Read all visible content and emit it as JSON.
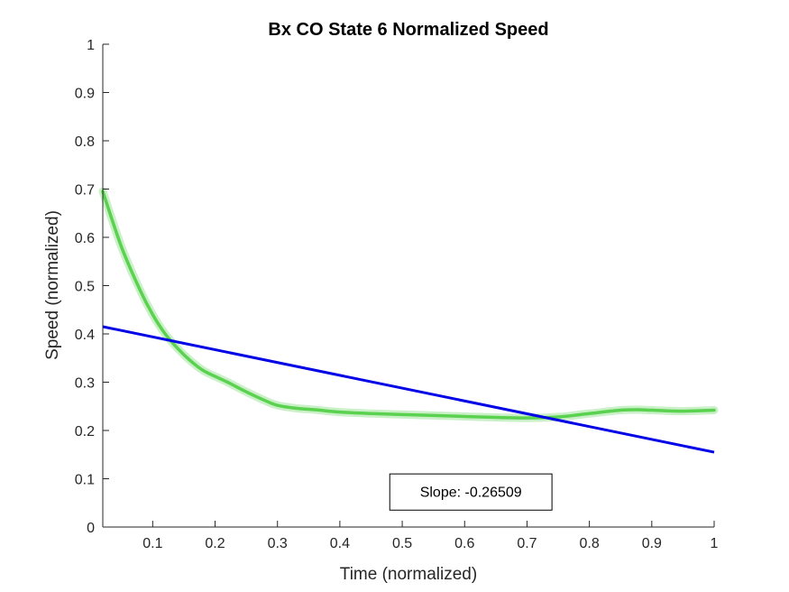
{
  "chart_data": {
    "type": "line",
    "title": "Bx  CO State 6 Normalized Speed",
    "xlabel": "Time (normalized)",
    "ylabel": "Speed (normalized)",
    "xlim": [
      0.02,
      1
    ],
    "ylim": [
      0,
      1
    ],
    "xticks": [
      0.1,
      0.2,
      0.3,
      0.4,
      0.5,
      0.6,
      0.7,
      0.8,
      0.9,
      1
    ],
    "xtick_labels": [
      "0.1",
      "0.2",
      "0.3",
      "0.4",
      "0.5",
      "0.6",
      "0.7",
      "0.8",
      "0.9",
      "1"
    ],
    "yticks": [
      0,
      0.1,
      0.2,
      0.3,
      0.4,
      0.5,
      0.6,
      0.7,
      0.8,
      0.9,
      1
    ],
    "ytick_labels": [
      "0",
      "0.1",
      "0.2",
      "0.3",
      "0.4",
      "0.5",
      "0.6",
      "0.7",
      "0.8",
      "0.9",
      "1"
    ],
    "grid": false,
    "series": [
      {
        "kind": "speed",
        "color": "#5ad14f",
        "band_color": "#9fe39a",
        "x": [
          0.02,
          0.05,
          0.08,
          0.1,
          0.12,
          0.14,
          0.16,
          0.18,
          0.2,
          0.22,
          0.25,
          0.28,
          0.3,
          0.33,
          0.36,
          0.4,
          0.45,
          0.5,
          0.55,
          0.6,
          0.65,
          0.7,
          0.75,
          0.8,
          0.85,
          0.88,
          0.9,
          0.95,
          1.0
        ],
        "y": [
          0.695,
          0.58,
          0.49,
          0.44,
          0.4,
          0.37,
          0.345,
          0.325,
          0.312,
          0.3,
          0.28,
          0.262,
          0.252,
          0.246,
          0.243,
          0.238,
          0.235,
          0.233,
          0.231,
          0.229,
          0.227,
          0.226,
          0.228,
          0.235,
          0.242,
          0.243,
          0.242,
          0.24,
          0.242
        ]
      },
      {
        "kind": "fit",
        "color": "#0000e6",
        "x": [
          0.02,
          1.0
        ],
        "y": [
          0.415,
          0.155
        ]
      }
    ],
    "annotation": {
      "text": "Slope: -0.26509",
      "x_range": [
        0.48,
        0.74
      ],
      "y_range": [
        0.035,
        0.11
      ]
    }
  }
}
